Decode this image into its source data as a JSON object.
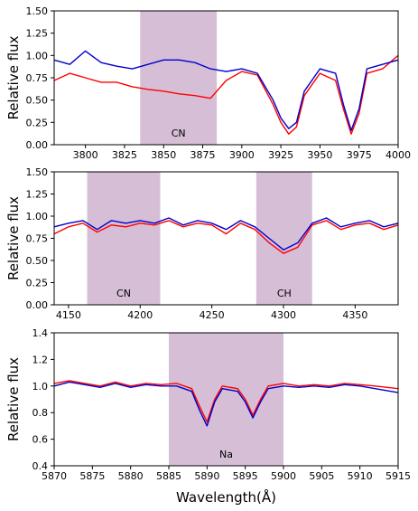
{
  "chart_data": [
    {
      "type": "line",
      "ylabel": "Relative flux",
      "xlabel": "",
      "xlim": [
        3780,
        4000
      ],
      "ylim": [
        0,
        1.5
      ],
      "xticks": [
        "3800",
        "3825",
        "3850",
        "3875",
        "3900",
        "3925",
        "3950",
        "3975",
        "4000"
      ],
      "yticks": [
        "0.00",
        "0.25",
        "0.50",
        "0.75",
        "1.00",
        "1.25",
        "1.50"
      ],
      "bands": [
        {
          "x0": 3835,
          "x1": 3884,
          "label": "CN"
        }
      ],
      "series": [
        {
          "color": "#ff0000",
          "x": [
            3780,
            3790,
            3800,
            3810,
            3820,
            3830,
            3840,
            3850,
            3860,
            3870,
            3880,
            3890,
            3900,
            3910,
            3920,
            3925,
            3930,
            3935,
            3940,
            3950,
            3960,
            3965,
            3970,
            3975,
            3980,
            3990,
            4000
          ],
          "y": [
            0.72,
            0.8,
            0.75,
            0.7,
            0.7,
            0.65,
            0.62,
            0.6,
            0.57,
            0.55,
            0.52,
            0.72,
            0.82,
            0.78,
            0.45,
            0.25,
            0.12,
            0.2,
            0.55,
            0.8,
            0.72,
            0.4,
            0.12,
            0.35,
            0.8,
            0.85,
            1.0
          ]
        },
        {
          "color": "#0000cc",
          "x": [
            3780,
            3790,
            3800,
            3810,
            3820,
            3830,
            3840,
            3850,
            3860,
            3870,
            3880,
            3890,
            3900,
            3910,
            3920,
            3925,
            3930,
            3935,
            3940,
            3950,
            3960,
            3965,
            3970,
            3975,
            3980,
            3990,
            4000
          ],
          "y": [
            0.95,
            0.9,
            1.05,
            0.92,
            0.88,
            0.85,
            0.9,
            0.95,
            0.95,
            0.92,
            0.85,
            0.82,
            0.85,
            0.8,
            0.5,
            0.3,
            0.18,
            0.25,
            0.6,
            0.85,
            0.8,
            0.45,
            0.16,
            0.4,
            0.85,
            0.9,
            0.95
          ]
        }
      ]
    },
    {
      "type": "line",
      "ylabel": "Relative flux",
      "xlabel": "",
      "xlim": [
        4140,
        4380
      ],
      "ylim": [
        0,
        1.5
      ],
      "xticks": [
        "4150",
        "4200",
        "4250",
        "4300",
        "4350"
      ],
      "yticks": [
        "0.00",
        "0.25",
        "0.50",
        "0.75",
        "1.00",
        "1.25",
        "1.50"
      ],
      "bands": [
        {
          "x0": 4163,
          "x1": 4214,
          "label": "CN"
        },
        {
          "x0": 4281,
          "x1": 4320,
          "label": "CH"
        }
      ],
      "series": [
        {
          "color": "#ff0000",
          "x": [
            4140,
            4150,
            4160,
            4170,
            4180,
            4190,
            4200,
            4210,
            4220,
            4230,
            4240,
            4250,
            4260,
            4270,
            4280,
            4290,
            4300,
            4310,
            4320,
            4330,
            4340,
            4350,
            4360,
            4370,
            4380
          ],
          "y": [
            0.8,
            0.88,
            0.92,
            0.82,
            0.9,
            0.88,
            0.92,
            0.9,
            0.95,
            0.88,
            0.92,
            0.9,
            0.8,
            0.92,
            0.85,
            0.7,
            0.58,
            0.65,
            0.9,
            0.95,
            0.85,
            0.9,
            0.92,
            0.85,
            0.9
          ]
        },
        {
          "color": "#0000cc",
          "x": [
            4140,
            4150,
            4160,
            4170,
            4180,
            4190,
            4200,
            4210,
            4220,
            4230,
            4240,
            4250,
            4260,
            4270,
            4280,
            4290,
            4300,
            4310,
            4320,
            4330,
            4340,
            4350,
            4360,
            4370,
            4380
          ],
          "y": [
            0.88,
            0.92,
            0.95,
            0.85,
            0.95,
            0.92,
            0.95,
            0.92,
            0.98,
            0.9,
            0.95,
            0.92,
            0.85,
            0.95,
            0.88,
            0.75,
            0.62,
            0.7,
            0.92,
            0.98,
            0.88,
            0.92,
            0.95,
            0.88,
            0.92
          ]
        }
      ]
    },
    {
      "type": "line",
      "ylabel": "Relative flux",
      "xlabel": "Wavelength(Å)",
      "xlim": [
        5870,
        5915
      ],
      "ylim": [
        0.4,
        1.4
      ],
      "xticks": [
        "5870",
        "5875",
        "5880",
        "5885",
        "5890",
        "5895",
        "5900",
        "5905",
        "5910",
        "5915"
      ],
      "yticks": [
        "0.4",
        "0.6",
        "0.8",
        "1.0",
        "1.2",
        "1.4"
      ],
      "bands": [
        {
          "x0": 5885,
          "x1": 5900,
          "label": "Na"
        }
      ],
      "series": [
        {
          "color": "#ff0000",
          "x": [
            5870,
            5872,
            5874,
            5876,
            5878,
            5880,
            5882,
            5884,
            5886,
            5888,
            5889,
            5890,
            5891,
            5892,
            5894,
            5895,
            5896,
            5897,
            5898,
            5900,
            5902,
            5904,
            5906,
            5908,
            5910,
            5912,
            5915
          ],
          "y": [
            1.02,
            1.04,
            1.02,
            1.0,
            1.03,
            1.0,
            1.02,
            1.01,
            1.02,
            0.98,
            0.85,
            0.73,
            0.9,
            1.0,
            0.98,
            0.9,
            0.78,
            0.9,
            1.0,
            1.02,
            1.0,
            1.01,
            1.0,
            1.02,
            1.01,
            1.0,
            0.98
          ]
        },
        {
          "color": "#0000cc",
          "x": [
            5870,
            5872,
            5874,
            5876,
            5878,
            5880,
            5882,
            5884,
            5886,
            5888,
            5889,
            5890,
            5891,
            5892,
            5894,
            5895,
            5896,
            5897,
            5898,
            5900,
            5902,
            5904,
            5906,
            5908,
            5910,
            5912,
            5915
          ],
          "y": [
            1.0,
            1.03,
            1.01,
            0.99,
            1.02,
            0.99,
            1.01,
            1.0,
            1.0,
            0.96,
            0.82,
            0.7,
            0.88,
            0.98,
            0.96,
            0.88,
            0.76,
            0.88,
            0.98,
            1.0,
            0.99,
            1.0,
            0.99,
            1.01,
            1.0,
            0.98,
            0.95
          ]
        }
      ]
    }
  ]
}
